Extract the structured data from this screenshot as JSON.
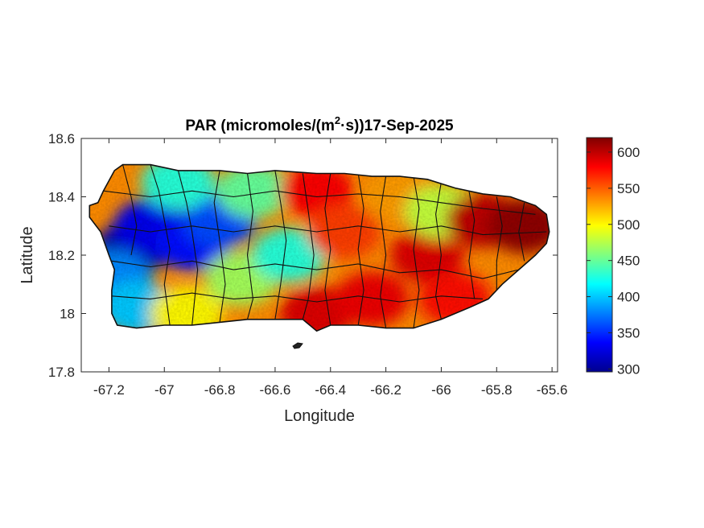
{
  "chart_data": {
    "type": "heatmap",
    "title": {
      "prefix": "PAR (micromoles/(m",
      "superscript": "2",
      "suffix": "·s))17-Sep-2025"
    },
    "xlabel": "Longitude",
    "ylabel": "Latitude",
    "xlim": [
      -67.3,
      -65.58
    ],
    "ylim": [
      17.8,
      18.6
    ],
    "xticks": [
      -67.2,
      -67,
      -66.8,
      -66.6,
      -66.4,
      -66.2,
      -66,
      -65.8,
      -65.6
    ],
    "xtick_labels": [
      "-67.2",
      "-67",
      "-66.8",
      "-66.6",
      "-66.4",
      "-66.2",
      "-66",
      "-65.8",
      "-65.6"
    ],
    "yticks": [
      17.8,
      18,
      18.2,
      18.4,
      18.6
    ],
    "ytick_labels": [
      "17.8",
      "18",
      "18.2",
      "18.4",
      "18.6"
    ],
    "colorbar": {
      "colormap": "jet",
      "range": [
        296,
        620
      ],
      "ticks": [
        300,
        350,
        400,
        450,
        500,
        550,
        600
      ],
      "tick_labels": [
        "300",
        "350",
        "400",
        "450",
        "500",
        "550",
        "600"
      ]
    },
    "grid": false,
    "region": "Puerto Rico",
    "value_field_points": [
      {
        "lon": -67.12,
        "lat": 18.22,
        "value": 310
      },
      {
        "lon": -67.05,
        "lat": 18.3,
        "value": 330
      },
      {
        "lon": -66.9,
        "lat": 18.24,
        "value": 340
      },
      {
        "lon": -66.8,
        "lat": 18.32,
        "value": 360
      },
      {
        "lon": -66.95,
        "lat": 18.45,
        "value": 430
      },
      {
        "lon": -67.18,
        "lat": 18.12,
        "value": 380
      },
      {
        "lon": -67.1,
        "lat": 18.02,
        "value": 400
      },
      {
        "lon": -66.92,
        "lat": 18.0,
        "value": 500
      },
      {
        "lon": -66.72,
        "lat": 18.12,
        "value": 470
      },
      {
        "lon": -66.68,
        "lat": 18.42,
        "value": 450
      },
      {
        "lon": -66.55,
        "lat": 18.2,
        "value": 430
      },
      {
        "lon": -66.45,
        "lat": 18.42,
        "value": 580
      },
      {
        "lon": -66.35,
        "lat": 18.28,
        "value": 560
      },
      {
        "lon": -66.45,
        "lat": 18.0,
        "value": 590
      },
      {
        "lon": -66.25,
        "lat": 18.05,
        "value": 585
      },
      {
        "lon": -66.15,
        "lat": 18.4,
        "value": 530
      },
      {
        "lon": -66.05,
        "lat": 18.2,
        "value": 590
      },
      {
        "lon": -66.0,
        "lat": 18.35,
        "value": 480
      },
      {
        "lon": -65.85,
        "lat": 18.32,
        "value": 600
      },
      {
        "lon": -65.7,
        "lat": 18.3,
        "value": 615
      },
      {
        "lon": -65.95,
        "lat": 18.05,
        "value": 575
      }
    ]
  }
}
